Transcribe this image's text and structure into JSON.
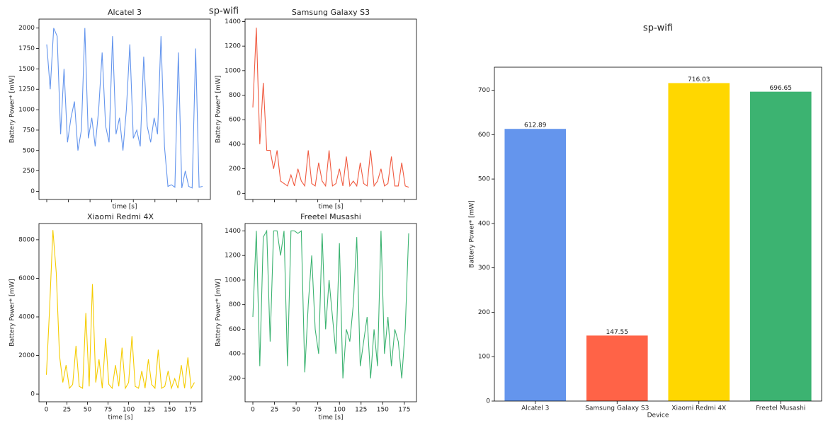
{
  "suptitle": "sp-wifi",
  "chart_data": [
    {
      "type": "line",
      "title": "Alcatel 3",
      "xlabel": "time [s]",
      "ylabel": "Battery Power* [mW]",
      "color": "#6495ed",
      "x": [
        0,
        4,
        8,
        12,
        16,
        20,
        24,
        28,
        32,
        36,
        40,
        44,
        48,
        52,
        56,
        60,
        64,
        68,
        72,
        76,
        80,
        84,
        88,
        92,
        96,
        100,
        104,
        108,
        112,
        116,
        120,
        124,
        128,
        132,
        136,
        140,
        144,
        148,
        152,
        156,
        160,
        164,
        168,
        172,
        176,
        180
      ],
      "values": [
        1800,
        1250,
        2000,
        1900,
        700,
        1500,
        600,
        900,
        1100,
        500,
        750,
        2000,
        650,
        900,
        550,
        1000,
        1700,
        800,
        600,
        1900,
        700,
        900,
        500,
        1000,
        1800,
        650,
        750,
        550,
        1650,
        800,
        600,
        900,
        700,
        1900,
        550,
        60,
        80,
        50,
        1700,
        40,
        250,
        60,
        40,
        1750,
        50,
        60
      ],
      "xlim": [
        -9,
        189
      ],
      "ylim": [
        -100,
        2110
      ],
      "xticks": [
        0,
        25,
        50,
        75,
        100,
        125,
        150,
        175
      ],
      "xtick_labels": false,
      "yticks": [
        0,
        250,
        500,
        750,
        1000,
        1250,
        1500,
        1750,
        2000
      ]
    },
    {
      "type": "line",
      "title": "Samsung Galaxy S3",
      "xlabel": "time [s]",
      "ylabel": "Battery Power* [mW]",
      "color": "#f05a40",
      "x": [
        0,
        4,
        8,
        12,
        16,
        20,
        24,
        28,
        32,
        36,
        40,
        44,
        48,
        52,
        56,
        60,
        64,
        68,
        72,
        76,
        80,
        84,
        88,
        92,
        96,
        100,
        104,
        108,
        112,
        116,
        120,
        124,
        128,
        132,
        136,
        140,
        144,
        148,
        152,
        156,
        160,
        164,
        168,
        172,
        176,
        180
      ],
      "values": [
        700,
        1350,
        400,
        900,
        350,
        350,
        200,
        350,
        100,
        80,
        60,
        150,
        60,
        200,
        100,
        60,
        350,
        80,
        60,
        250,
        100,
        60,
        350,
        60,
        80,
        200,
        60,
        300,
        60,
        100,
        60,
        250,
        80,
        60,
        350,
        60,
        100,
        200,
        60,
        80,
        300,
        60,
        60,
        250,
        60,
        50
      ],
      "xlim": [
        -9,
        189
      ],
      "ylim": [
        -50,
        1420
      ],
      "xticks": [
        0,
        25,
        50,
        75,
        100,
        125,
        150,
        175
      ],
      "xtick_labels": false,
      "yticks": [
        0,
        200,
        400,
        600,
        800,
        1000,
        1200,
        1400
      ]
    },
    {
      "type": "line",
      "title": "Xiaomi Redmi 4X",
      "xlabel": "time [s]",
      "ylabel": "Battery Power* [mW]",
      "color": "#f5cc00",
      "x": [
        0,
        4,
        8,
        12,
        16,
        20,
        24,
        28,
        32,
        36,
        40,
        44,
        48,
        52,
        56,
        60,
        64,
        68,
        72,
        76,
        80,
        84,
        88,
        92,
        96,
        100,
        104,
        108,
        112,
        116,
        120,
        124,
        128,
        132,
        136,
        140,
        144,
        148,
        152,
        156,
        160,
        164,
        168,
        172,
        176,
        180
      ],
      "values": [
        1000,
        4500,
        8500,
        6300,
        2000,
        600,
        1500,
        300,
        500,
        2500,
        400,
        300,
        4200,
        400,
        5700,
        600,
        1800,
        300,
        2900,
        500,
        300,
        1500,
        400,
        2400,
        300,
        600,
        3000,
        400,
        300,
        1200,
        300,
        1800,
        500,
        300,
        2300,
        300,
        400,
        1200,
        300,
        800,
        300,
        1500,
        300,
        1900,
        300,
        600
      ],
      "xlim": [
        -9,
        189
      ],
      "ylim": [
        -400,
        8840
      ],
      "xticks": [
        0,
        25,
        50,
        75,
        100,
        125,
        150,
        175
      ],
      "xtick_labels": true,
      "yticks": [
        0,
        2000,
        4000,
        6000,
        8000
      ]
    },
    {
      "type": "line",
      "title": "Freetel Musashi",
      "xlabel": "time [s]",
      "ylabel": "Battery Power* [mW]",
      "color": "#3cb371",
      "x": [
        0,
        4,
        8,
        12,
        16,
        20,
        24,
        28,
        32,
        36,
        40,
        44,
        48,
        52,
        56,
        60,
        64,
        68,
        72,
        76,
        80,
        84,
        88,
        92,
        96,
        100,
        104,
        108,
        112,
        116,
        120,
        124,
        128,
        132,
        136,
        140,
        144,
        148,
        152,
        156,
        160,
        164,
        168,
        172,
        176,
        180
      ],
      "values": [
        700,
        1400,
        300,
        1350,
        1400,
        500,
        1400,
        1400,
        1200,
        1400,
        300,
        1400,
        1400,
        1380,
        1400,
        250,
        800,
        1200,
        600,
        400,
        1380,
        600,
        1000,
        700,
        400,
        1300,
        200,
        600,
        500,
        800,
        1350,
        300,
        500,
        700,
        200,
        600,
        300,
        1400,
        400,
        700,
        300,
        600,
        500,
        200,
        600,
        1380
      ],
      "xlim": [
        -9,
        189
      ],
      "ylim": [
        10,
        1460
      ],
      "xticks": [
        0,
        25,
        50,
        75,
        100,
        125,
        150,
        175
      ],
      "xtick_labels": true,
      "yticks": [
        200,
        400,
        600,
        800,
        1000,
        1200,
        1400
      ]
    },
    {
      "type": "bar",
      "title": "sp-wifi",
      "xlabel": "Device",
      "ylabel": "Battery Power* [mW]",
      "categories": [
        "Alcatel 3",
        "Samsung Galaxy S3",
        "Xiaomi Redmi 4X",
        "Freetel Musashi"
      ],
      "values": [
        612.89,
        147.55,
        716.03,
        696.65
      ],
      "colors": [
        "#6495ed",
        "#ff6347",
        "#ffd700",
        "#3cb371"
      ],
      "ylim": [
        0,
        751.8
      ],
      "yticks": [
        0,
        100,
        200,
        300,
        400,
        500,
        600,
        700
      ]
    }
  ]
}
